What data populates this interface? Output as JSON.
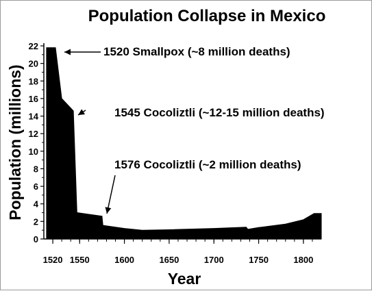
{
  "chart_data": {
    "type": "area",
    "title": "Population Collapse in Mexico",
    "xlabel": "Year",
    "ylabel": "Population (millions)",
    "xlim": [
      1510,
      1820
    ],
    "ylim": [
      0,
      22
    ],
    "x_ticks": [
      1520,
      1550,
      1600,
      1650,
      1700,
      1750,
      1800
    ],
    "y_ticks": [
      0,
      2,
      4,
      6,
      8,
      10,
      12,
      14,
      16,
      18,
      20,
      22
    ],
    "grid": false,
    "color": "#000000",
    "x": [
      1513,
      1523,
      1530,
      1543,
      1547,
      1575,
      1576,
      1600,
      1620,
      1650,
      1700,
      1736,
      1738,
      1750,
      1780,
      1800,
      1812,
      1820
    ],
    "values": [
      21.8,
      21.8,
      16,
      14.6,
      3.0,
      2.6,
      1.55,
      1.2,
      1.0,
      1.05,
      1.2,
      1.35,
      1.1,
      1.3,
      1.7,
      2.2,
      2.9,
      2.9
    ],
    "annotations": [
      {
        "text": "1520  Smallpox (~8 million deaths)",
        "x": 1520,
        "y": 21.8
      },
      {
        "text": "1545  Cocoliztli (~12-15 million deaths)",
        "x": 1545,
        "y": 14.7
      },
      {
        "text": "1576  Cocoliztli (~2 million deaths)",
        "x": 1576,
        "y": 2.5
      }
    ]
  }
}
